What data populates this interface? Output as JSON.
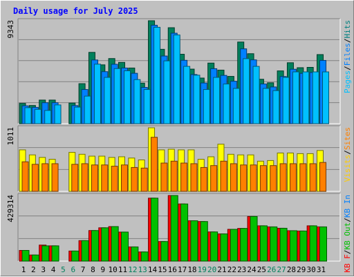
{
  "chart_data": {
    "type": "bar",
    "title": "Daily usage for July 2025",
    "categories": [
      "1",
      "2",
      "3",
      "4",
      "5",
      "6",
      "7",
      "8",
      "9",
      "10",
      "11",
      "12",
      "13",
      "14",
      "15",
      "16",
      "17",
      "18",
      "19",
      "20",
      "21",
      "22",
      "23",
      "24",
      "25",
      "26",
      "27",
      "28",
      "29",
      "30",
      "31"
    ],
    "weekend_days": [
      "5",
      "6",
      "12",
      "13",
      "19",
      "20",
      "26",
      "27"
    ],
    "panels": [
      {
        "name": "hits-files-pages",
        "max_label": "9343",
        "legend": [
          {
            "text": "Pages",
            "color": "#00c0ff"
          },
          {
            "text": "/",
            "color": "#000000"
          },
          {
            "text": "Files",
            "color": "#0080ff"
          },
          {
            "text": "/",
            "color": "#000000"
          },
          {
            "text": "Hits",
            "color": "#008080"
          }
        ],
        "series": [
          {
            "name": "Hits",
            "color": "#00805c",
            "values": [
              1840,
              1650,
              2140,
              2140,
              0,
              1870,
              3630,
              6470,
              5340,
              5910,
              5560,
              5050,
              3680,
              9343,
              6750,
              8710,
              6300,
              4950,
              4140,
              5500,
              4860,
              4290,
              7410,
              6350,
              4030,
              3710,
              4790,
              5530,
              5080,
              5110,
              6270
            ]
          },
          {
            "name": "Files",
            "color": "#0080ff",
            "values": [
              1620,
              1480,
              1900,
              1900,
              0,
              1640,
              3100,
              5780,
              4720,
              5390,
              5050,
              4570,
              3290,
              8930,
              6140,
              8210,
              5750,
              4460,
              3690,
              4990,
              4380,
              3850,
              6790,
              5790,
              3600,
              3330,
              4280,
              4940,
              4560,
              4640,
              5740
            ]
          },
          {
            "name": "Pages",
            "color": "#00c0ff",
            "values": [
              1450,
              1300,
              1200,
              1700,
              0,
              1500,
              2500,
              5400,
              4200,
              5000,
              4800,
              4000,
              3100,
              8750,
              5700,
              8050,
              5200,
              4400,
              3100,
              4200,
              3600,
              3200,
              5900,
              5200,
              3200,
              3000,
              4200,
              4700,
              4700,
              4700,
              4700
            ]
          }
        ]
      },
      {
        "name": "visits-sites",
        "max_label": "1011",
        "legend": [
          {
            "text": "Visits",
            "color": "#ffcc00"
          },
          {
            "text": "/",
            "color": "#000000"
          },
          {
            "text": "Sites",
            "color": "#ff8000"
          }
        ],
        "series": [
          {
            "name": "Visits",
            "color": "#ffff00",
            "values": [
              660,
              580,
              540,
              510,
              0,
              620,
              590,
              560,
              560,
              540,
              550,
              530,
              500,
              1011,
              660,
              670,
              660,
              660,
              510,
              550,
              750,
              590,
              580,
              580,
              480,
              490,
              610,
              610,
              600,
              600,
              650
            ]
          },
          {
            "name": "Sites",
            "color": "#ff8000",
            "values": [
              470,
              430,
              440,
              440,
              0,
              430,
              440,
              420,
              420,
              400,
              420,
              380,
              370,
              860,
              450,
              480,
              450,
              440,
              380,
              410,
              480,
              440,
              420,
              420,
              410,
              410,
              440,
              440,
              440,
              440,
              460
            ]
          }
        ]
      },
      {
        "name": "kbytes",
        "max_label": "429314",
        "legend": [
          {
            "text": "KB F",
            "color": "#ff0000"
          },
          {
            "text": "/",
            "color": "#000000"
          },
          {
            "text": "KB Out",
            "color": "#00c000"
          },
          {
            "text": "/",
            "color": "#000000"
          },
          {
            "text": "KB In",
            "color": "#0080ff"
          }
        ],
        "series": [
          {
            "name": "KB F",
            "color": "#ff0000",
            "values": [
              70000,
              40000,
              105000,
              100000,
              0,
              66000,
              134000,
              200000,
              218000,
              226000,
              190000,
              93000,
              60000,
              412000,
              128000,
              429314,
              374000,
              264000,
              259000,
              191000,
              178000,
              208000,
              214000,
              292000,
              231000,
              224000,
              215000,
              199000,
              197000,
              231000,
              224000
            ]
          },
          {
            "name": "KB Out",
            "color": "#00c000",
            "values": [
              70000,
              40000,
              100000,
              100000,
              0,
              66000,
              134000,
              200000,
              218000,
              226000,
              190000,
              93000,
              60000,
              412000,
              128000,
              429314,
              374000,
              264000,
              259000,
              191000,
              178000,
              208000,
              214000,
              292000,
              231000,
              224000,
              215000,
              199000,
              197000,
              231000,
              224000
            ]
          }
        ]
      }
    ]
  }
}
